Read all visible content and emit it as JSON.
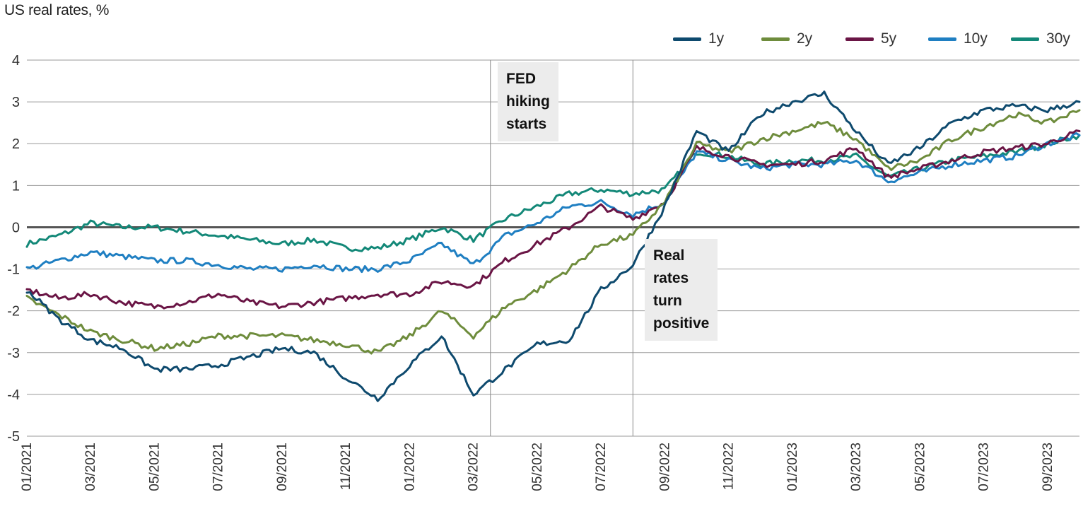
{
  "chart_data": {
    "type": "line",
    "title": "US real rates, %",
    "xlabel": "",
    "ylabel": "",
    "xlim": [
      "2021-01",
      "2023-10"
    ],
    "ylim": [
      -5,
      4
    ],
    "yticks": [
      "4",
      "3",
      "2",
      "1",
      "0",
      "-1",
      "-2",
      "-3",
      "-4",
      "-5"
    ],
    "xticks": [
      "01/2021",
      "03/2021",
      "05/2021",
      "07/2021",
      "09/2021",
      "11/2021",
      "01/2022",
      "03/2022",
      "05/2022",
      "07/2022",
      "09/2022",
      "11/2022",
      "01/2023",
      "03/2023",
      "05/2023",
      "07/2023",
      "09/2023"
    ],
    "grid": true,
    "legend_position": "top-right",
    "x": [
      "2021-01",
      "2021-02",
      "2021-03",
      "2021-04",
      "2021-05",
      "2021-06",
      "2021-07",
      "2021-08",
      "2021-09",
      "2021-10",
      "2021-11",
      "2021-12",
      "2022-01",
      "2022-02",
      "2022-03",
      "2022-04",
      "2022-05",
      "2022-06",
      "2022-07",
      "2022-08",
      "2022-09",
      "2022-10",
      "2022-11",
      "2022-12",
      "2023-01",
      "2023-02",
      "2023-03",
      "2023-04",
      "2023-05",
      "2023-06",
      "2023-07",
      "2023-08",
      "2023-09",
      "2023-10"
    ],
    "series": [
      {
        "name": "1y",
        "color": "#0e4a6e",
        "values": [
          -1.5,
          -2.2,
          -2.7,
          -2.9,
          -3.4,
          -3.4,
          -3.3,
          -3.1,
          -2.9,
          -3.0,
          -3.6,
          -4.1,
          -3.3,
          -2.6,
          -4.0,
          -3.4,
          -2.8,
          -2.7,
          -1.5,
          -0.9,
          0.5,
          2.3,
          1.8,
          2.7,
          3.0,
          3.2,
          2.3,
          1.5,
          1.9,
          2.5,
          2.8,
          2.9,
          2.8,
          3.0
        ]
      },
      {
        "name": "2y",
        "color": "#6e8c3c",
        "values": [
          -1.7,
          -2.1,
          -2.5,
          -2.7,
          -2.9,
          -2.8,
          -2.6,
          -2.6,
          -2.6,
          -2.7,
          -2.8,
          -3.0,
          -2.6,
          -2.0,
          -2.6,
          -1.9,
          -1.5,
          -1.0,
          -0.4,
          -0.2,
          0.6,
          2.0,
          1.8,
          2.1,
          2.3,
          2.5,
          2.1,
          1.4,
          1.6,
          2.1,
          2.4,
          2.7,
          2.5,
          2.8
        ]
      },
      {
        "name": "5y",
        "color": "#6a1545",
        "values": [
          -1.5,
          -1.7,
          -1.6,
          -1.8,
          -1.9,
          -1.8,
          -1.6,
          -1.8,
          -1.9,
          -1.8,
          -1.7,
          -1.6,
          -1.6,
          -1.3,
          -1.4,
          -0.8,
          -0.4,
          0.0,
          0.5,
          0.2,
          0.6,
          1.9,
          1.7,
          1.5,
          1.5,
          1.6,
          1.9,
          1.2,
          1.4,
          1.6,
          1.8,
          1.9,
          2.0,
          2.3
        ]
      },
      {
        "name": "10y",
        "color": "#1f7fc2",
        "values": [
          -1.0,
          -0.8,
          -0.6,
          -0.7,
          -0.8,
          -0.8,
          -0.9,
          -1.0,
          -1.0,
          -0.9,
          -1.0,
          -1.0,
          -0.8,
          -0.4,
          -0.9,
          -0.2,
          0.1,
          0.5,
          0.6,
          0.3,
          0.6,
          1.8,
          1.6,
          1.4,
          1.5,
          1.5,
          1.6,
          1.1,
          1.3,
          1.5,
          1.6,
          1.7,
          2.0,
          2.2
        ]
      },
      {
        "name": "30y",
        "color": "#138878",
        "values": [
          -0.4,
          -0.2,
          0.1,
          0.0,
          0.0,
          -0.1,
          -0.2,
          -0.3,
          -0.4,
          -0.3,
          -0.5,
          -0.5,
          -0.3,
          0.0,
          -0.3,
          0.2,
          0.5,
          0.8,
          0.9,
          0.8,
          0.9,
          1.8,
          1.7,
          1.5,
          1.6,
          1.6,
          1.7,
          1.2,
          1.4,
          1.6,
          1.7,
          1.8,
          2.0,
          2.2
        ]
      }
    ],
    "vlines": [
      "2022-03-17",
      "2022-08-01"
    ],
    "annotations": [
      {
        "text": [
          "FED",
          "hiking",
          "starts"
        ]
      },
      {
        "text": [
          "Real",
          "rates",
          "turn",
          "positive"
        ]
      }
    ]
  }
}
